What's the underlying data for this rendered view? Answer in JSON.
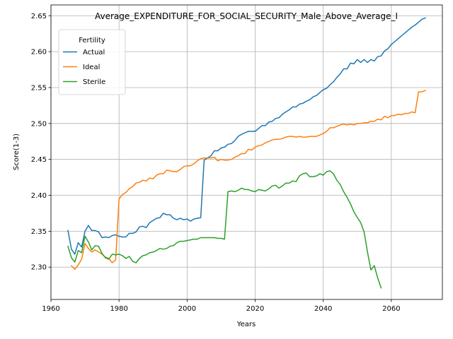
{
  "chart_data": {
    "type": "line",
    "title": "Average_EXPENDITURE_FOR_SOCIAL_SECURITY_Male_Above_Average_I",
    "xlabel": "Years",
    "ylabel": "Score(1-3)",
    "xlim": [
      1960,
      2075
    ],
    "ylim": [
      2.255,
      2.665
    ],
    "xticks": [
      1960,
      1980,
      2000,
      2020,
      2040,
      2060
    ],
    "yticks": [
      2.3,
      2.35,
      2.4,
      2.45,
      2.5,
      2.55,
      2.6,
      2.65
    ],
    "grid": true,
    "legend": {
      "title": "Fertility",
      "placement": "top-left"
    },
    "colors": {
      "Actual": "#1f77b4",
      "Ideal": "#ff7f0e",
      "Sterile": "#2ca02c"
    },
    "series": [
      {
        "name": "Actual",
        "x": [
          1965,
          1966,
          1967,
          1968,
          1969,
          1970,
          1971,
          1972,
          1973,
          1974,
          1975,
          1976,
          1977,
          1978,
          1979,
          1980,
          1981,
          1982,
          1983,
          1984,
          1985,
          1986,
          1987,
          1988,
          1989,
          1990,
          1991,
          1992,
          1993,
          1994,
          1995,
          1996,
          1997,
          1998,
          1999,
          2000,
          2001,
          2002,
          2003,
          2004,
          2005,
          2006,
          2007,
          2008,
          2009,
          2010,
          2011,
          2012,
          2013,
          2014,
          2015,
          2016,
          2017,
          2018,
          2019,
          2020,
          2021,
          2022,
          2023,
          2024,
          2025,
          2026,
          2027,
          2028,
          2029,
          2030,
          2031,
          2032,
          2033,
          2034,
          2035,
          2036,
          2037,
          2038,
          2039,
          2040,
          2041,
          2042,
          2043,
          2044,
          2045,
          2046,
          2047,
          2048,
          2049,
          2050,
          2051,
          2052,
          2053,
          2054,
          2055,
          2056,
          2057,
          2058,
          2059,
          2060,
          2061,
          2062,
          2063,
          2064,
          2065,
          2066,
          2067,
          2068,
          2069,
          2070
        ],
        "values": [
          2.351,
          2.325,
          2.318,
          2.334,
          2.328,
          2.35,
          2.358,
          2.351,
          2.351,
          2.349,
          2.341,
          2.342,
          2.341,
          2.344,
          2.345,
          2.343,
          2.342,
          2.342,
          2.347,
          2.347,
          2.349,
          2.356,
          2.357,
          2.355,
          2.362,
          2.365,
          2.368,
          2.369,
          2.375,
          2.373,
          2.373,
          2.368,
          2.366,
          2.368,
          2.366,
          2.367,
          2.364,
          2.367,
          2.368,
          2.369,
          2.449,
          2.452,
          2.455,
          2.462,
          2.462,
          2.466,
          2.467,
          2.471,
          2.472,
          2.476,
          2.482,
          2.485,
          2.487,
          2.489,
          2.489,
          2.489,
          2.493,
          2.497,
          2.497,
          2.502,
          2.503,
          2.507,
          2.508,
          2.513,
          2.516,
          2.519,
          2.523,
          2.523,
          2.527,
          2.528,
          2.531,
          2.533,
          2.537,
          2.539,
          2.543,
          2.547,
          2.549,
          2.554,
          2.558,
          2.564,
          2.569,
          2.576,
          2.576,
          2.584,
          2.583,
          2.589,
          2.585,
          2.589,
          2.585,
          2.589,
          2.587,
          2.593,
          2.594,
          2.601,
          2.604,
          2.61,
          2.614,
          2.618,
          2.622,
          2.626,
          2.63,
          2.634,
          2.637,
          2.641,
          2.645,
          2.647
        ]
      },
      {
        "name": "Ideal",
        "x": [
          1966,
          1967,
          1968,
          1969,
          1970,
          1971,
          1972,
          1973,
          1974,
          1975,
          1976,
          1977,
          1978,
          1979,
          1980,
          1981,
          1982,
          1983,
          1984,
          1985,
          1986,
          1987,
          1988,
          1989,
          1990,
          1991,
          1992,
          1993,
          1994,
          1995,
          1996,
          1997,
          1998,
          1999,
          2000,
          2001,
          2002,
          2003,
          2004,
          2005,
          2006,
          2007,
          2008,
          2009,
          2010,
          2011,
          2012,
          2013,
          2014,
          2015,
          2016,
          2017,
          2018,
          2019,
          2020,
          2021,
          2022,
          2023,
          2024,
          2025,
          2026,
          2027,
          2028,
          2029,
          2030,
          2031,
          2032,
          2033,
          2034,
          2035,
          2036,
          2037,
          2038,
          2039,
          2040,
          2041,
          2042,
          2043,
          2044,
          2045,
          2046,
          2047,
          2048,
          2049,
          2050,
          2051,
          2052,
          2053,
          2054,
          2055,
          2056,
          2057,
          2058,
          2059,
          2060,
          2061,
          2062,
          2063,
          2064,
          2065,
          2066,
          2067,
          2068,
          2069,
          2070
        ],
        "values": [
          2.302,
          2.297,
          2.303,
          2.311,
          2.333,
          2.326,
          2.321,
          2.324,
          2.321,
          2.318,
          2.314,
          2.312,
          2.306,
          2.31,
          2.395,
          2.401,
          2.404,
          2.409,
          2.412,
          2.417,
          2.418,
          2.421,
          2.42,
          2.424,
          2.423,
          2.428,
          2.43,
          2.43,
          2.435,
          2.434,
          2.433,
          2.433,
          2.436,
          2.44,
          2.441,
          2.441,
          2.444,
          2.448,
          2.451,
          2.452,
          2.452,
          2.452,
          2.453,
          2.448,
          2.45,
          2.449,
          2.449,
          2.45,
          2.453,
          2.455,
          2.458,
          2.458,
          2.464,
          2.463,
          2.467,
          2.469,
          2.47,
          2.473,
          2.475,
          2.477,
          2.478,
          2.478,
          2.479,
          2.481,
          2.482,
          2.482,
          2.481,
          2.482,
          2.481,
          2.481,
          2.482,
          2.482,
          2.482,
          2.484,
          2.486,
          2.489,
          2.494,
          2.494,
          2.496,
          2.498,
          2.499,
          2.498,
          2.499,
          2.498,
          2.5,
          2.5,
          2.501,
          2.501,
          2.503,
          2.503,
          2.506,
          2.505,
          2.51,
          2.508,
          2.511,
          2.511,
          2.513,
          2.512,
          2.514,
          2.514,
          2.516,
          2.515,
          2.544,
          2.544,
          2.546
        ]
      },
      {
        "name": "Sterile",
        "x": [
          1965,
          1966,
          1967,
          1968,
          1969,
          1970,
          1971,
          1972,
          1973,
          1974,
          1975,
          1976,
          1977,
          1978,
          1979,
          1980,
          1981,
          1982,
          1983,
          1984,
          1985,
          1986,
          1987,
          1988,
          1989,
          1990,
          1991,
          1992,
          1993,
          1994,
          1995,
          1996,
          1997,
          1998,
          1999,
          2000,
          2001,
          2002,
          2003,
          2004,
          2005,
          2006,
          2007,
          2008,
          2009,
          2010,
          2011,
          2012,
          2013,
          2014,
          2015,
          2016,
          2017,
          2018,
          2019,
          2020,
          2021,
          2022,
          2023,
          2024,
          2025,
          2026,
          2027,
          2028,
          2029,
          2030,
          2031,
          2032,
          2033,
          2034,
          2035,
          2036,
          2037,
          2038,
          2039,
          2040,
          2041,
          2042,
          2043,
          2044,
          2045,
          2046,
          2047,
          2048,
          2049,
          2050,
          2051,
          2052,
          2053,
          2054,
          2055,
          2056,
          2057
        ],
        "values": [
          2.329,
          2.313,
          2.307,
          2.323,
          2.32,
          2.343,
          2.335,
          2.324,
          2.33,
          2.329,
          2.319,
          2.313,
          2.311,
          2.318,
          2.317,
          2.318,
          2.316,
          2.312,
          2.315,
          2.308,
          2.306,
          2.312,
          2.316,
          2.317,
          2.32,
          2.321,
          2.323,
          2.326,
          2.325,
          2.326,
          2.329,
          2.33,
          2.334,
          2.336,
          2.336,
          2.337,
          2.338,
          2.339,
          2.339,
          2.341,
          2.341,
          2.341,
          2.341,
          2.341,
          2.34,
          2.34,
          2.339,
          2.405,
          2.406,
          2.405,
          2.407,
          2.41,
          2.408,
          2.408,
          2.406,
          2.405,
          2.408,
          2.407,
          2.406,
          2.409,
          2.413,
          2.414,
          2.41,
          2.413,
          2.417,
          2.417,
          2.42,
          2.419,
          2.427,
          2.43,
          2.431,
          2.426,
          2.426,
          2.427,
          2.43,
          2.428,
          2.433,
          2.434,
          2.43,
          2.421,
          2.415,
          2.405,
          2.397,
          2.388,
          2.377,
          2.369,
          2.362,
          2.349,
          2.321,
          2.296,
          2.302,
          2.285,
          2.271
        ]
      }
    ]
  }
}
